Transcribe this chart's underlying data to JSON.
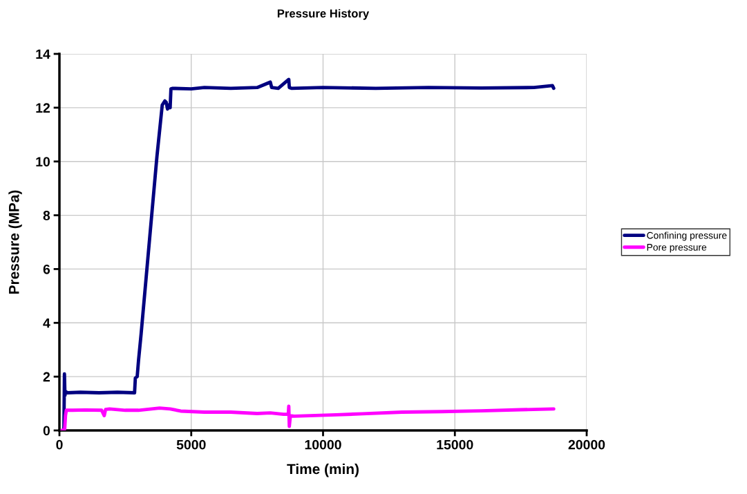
{
  "chart_data": {
    "type": "line",
    "title": "Pressure History",
    "xlabel": "Time (min)",
    "ylabel": "Pressure (MPa)",
    "xlim": [
      0,
      20000
    ],
    "xticks": [
      0,
      5000,
      10000,
      15000,
      20000
    ],
    "ylim": [
      0,
      14
    ],
    "yticks": [
      0,
      2,
      4,
      6,
      8,
      10,
      12,
      14
    ],
    "grid": true,
    "legend": "right",
    "marker": "none",
    "line_style": "solid",
    "series": [
      {
        "name": "Confining pressure",
        "color": "#000080",
        "x": [
          120,
          170,
          190,
          210,
          230,
          300,
          800,
          1500,
          2200,
          2850,
          2880,
          2950,
          3000,
          3100,
          3300,
          3500,
          3700,
          3900,
          4000,
          4050,
          4100,
          4150,
          4200,
          4230,
          4300,
          5000,
          5500,
          6500,
          7500,
          8000,
          8050,
          8300,
          8700,
          8720,
          8800,
          10000,
          12000,
          14000,
          16000,
          18000,
          18700,
          18750
        ],
        "values": [
          0,
          0.05,
          2.1,
          1.3,
          1.45,
          1.4,
          1.42,
          1.4,
          1.42,
          1.4,
          1.95,
          2.0,
          2.6,
          3.6,
          5.8,
          8.0,
          10.2,
          12.1,
          12.25,
          12.2,
          11.95,
          12.1,
          12.0,
          12.7,
          12.72,
          12.7,
          12.75,
          12.72,
          12.75,
          12.95,
          12.75,
          12.72,
          13.05,
          12.75,
          12.72,
          12.75,
          12.72,
          12.75,
          12.73,
          12.75,
          12.82,
          12.72
        ]
      },
      {
        "name": "Pore pressure",
        "color": "#ff00ff",
        "x": [
          100,
          200,
          230,
          260,
          500,
          1000,
          1600,
          1700,
          1750,
          1900,
          2500,
          3000,
          3800,
          4200,
          4600,
          5500,
          6500,
          7500,
          8000,
          8500,
          8680,
          8700,
          8720,
          8760,
          8900,
          9500,
          10500,
          11500,
          13000,
          14500,
          16000,
          17500,
          18750
        ],
        "values": [
          0,
          0.05,
          0.55,
          0.75,
          0.75,
          0.76,
          0.75,
          0.55,
          0.78,
          0.8,
          0.75,
          0.75,
          0.83,
          0.8,
          0.72,
          0.68,
          0.68,
          0.63,
          0.65,
          0.6,
          0.6,
          0.9,
          0.15,
          0.55,
          0.53,
          0.55,
          0.58,
          0.62,
          0.68,
          0.7,
          0.73,
          0.77,
          0.8
        ]
      }
    ]
  }
}
